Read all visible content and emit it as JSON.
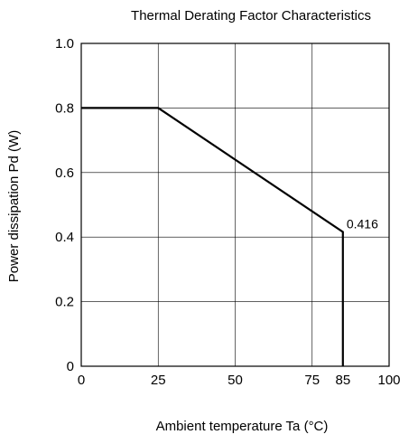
{
  "chart_data": {
    "type": "line",
    "title": "Thermal Derating Factor Characteristics",
    "xlabel": "Ambient temperature  Ta (°C)",
    "ylabel": "Power dissipation  Pd (W)",
    "xlim": [
      0,
      100
    ],
    "ylim": [
      0,
      1.0
    ],
    "x_ticks": [
      0,
      25,
      50,
      75,
      85,
      100
    ],
    "x_tick_labels": [
      "0",
      "25",
      "50",
      "75",
      "85",
      "100"
    ],
    "y_ticks": [
      0,
      0.2,
      0.4,
      0.6,
      0.8,
      1.0
    ],
    "y_tick_labels": [
      "0",
      "0.2",
      "0.4",
      "0.6",
      "0.8",
      "1.0"
    ],
    "x_grid": [
      0,
      25,
      50,
      75,
      100
    ],
    "y_grid": [
      0,
      0.2,
      0.4,
      0.6,
      0.8,
      1.0
    ],
    "grid": true,
    "series": [
      {
        "x": [
          0,
          25,
          85,
          85
        ],
        "y": [
          0.8,
          0.8,
          0.416,
          0
        ]
      }
    ],
    "annotations": [
      {
        "text": "0.416",
        "x": 85,
        "y": 0.416
      }
    ]
  }
}
